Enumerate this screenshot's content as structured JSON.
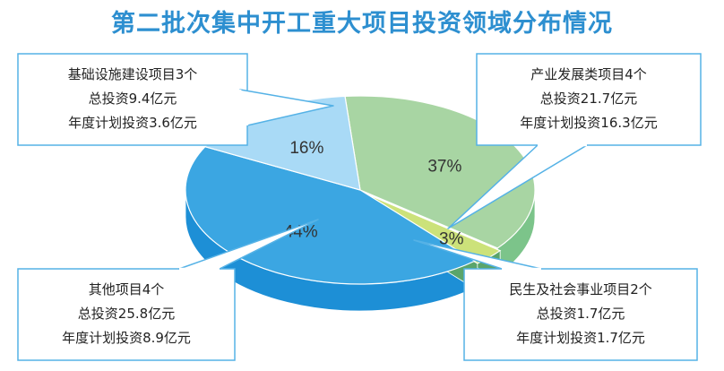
{
  "title": "第二批次集中开工重大项目投资领域分布情况",
  "chart_data": {
    "type": "pie",
    "title": "第二批次集中开工重大项目投资领域分布情况",
    "slices": [
      {
        "label": "产业发展类项目4个",
        "value": 37,
        "pct_label": "37%",
        "color_top": "#a8d5a3",
        "color_side": "#7cc48a",
        "callout": [
          "产业发展类项目4个",
          "总投资21.7亿元",
          "年度计划投资16.3亿元"
        ]
      },
      {
        "label": "民生及社会事业项目2个",
        "value": 3,
        "pct_label": "3%",
        "color_top": "#cce27a",
        "color_side": "#5aa56b",
        "callout": [
          "民生及社会事业项目2个",
          "总投资1.7亿元",
          "年度计划投资1.7亿元"
        ]
      },
      {
        "label": "其他项目4个",
        "value": 44,
        "pct_label": "44%",
        "color_top": "#3ba6e2",
        "color_side": "#1d8fd6",
        "callout": [
          "其他项目4个",
          "总投资25.8亿元",
          "年度计划投资8.9亿元"
        ]
      },
      {
        "label": "基础设施建设项目3个",
        "value": 16,
        "pct_label": "16%",
        "color_top": "#a9daf6",
        "color_side": "#8fcdf0",
        "callout": [
          "基础设施建设项目3个",
          "总投资9.4亿元",
          "年度计划投资3.6亿元"
        ]
      }
    ]
  }
}
